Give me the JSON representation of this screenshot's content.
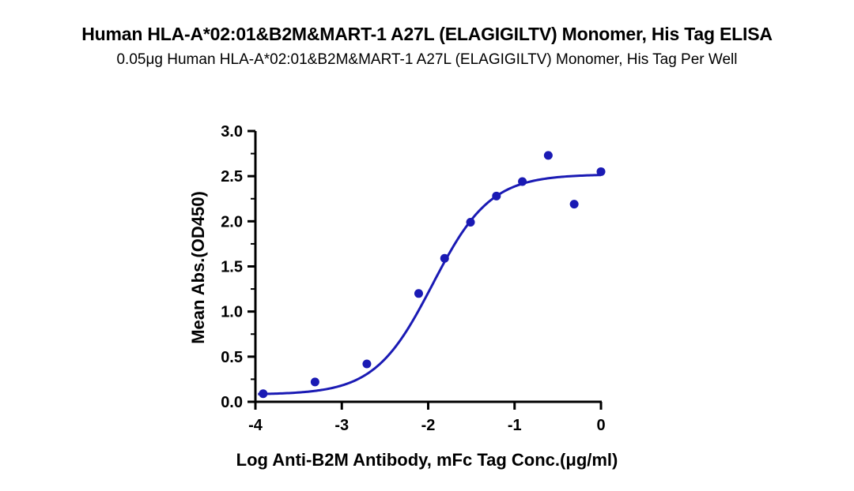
{
  "chart_data": {
    "type": "scatter",
    "title": "Human HLA-A*02:01&B2M&MART-1 A27L (ELAGIGILTV) Monomer, His Tag ELISA",
    "subtitle": "0.05μg  Human HLA-A*02:01&B2M&MART-1 A27L (ELAGIGILTV) Monomer, His Tag Per Well",
    "xlabel": "Log Anti-B2M Antibody, mFc Tag Conc.(μg/ml)",
    "ylabel": "Mean Abs.(OD450)",
    "xlim": [
      -4,
      0
    ],
    "ylim": [
      0,
      3.0
    ],
    "xticks": [
      "-4",
      "-3",
      "-2",
      "-1",
      "0"
    ],
    "yticks": [
      "0.0",
      "0.5",
      "1.0",
      "1.5",
      "2.0",
      "2.5",
      "3.0"
    ],
    "grid": false,
    "series": [
      {
        "points": [
          {
            "x": -3.91,
            "y": 0.09
          },
          {
            "x": -3.31,
            "y": 0.22
          },
          {
            "x": -2.71,
            "y": 0.42
          },
          {
            "x": -2.11,
            "y": 1.2
          },
          {
            "x": -1.81,
            "y": 1.59
          },
          {
            "x": -1.51,
            "y": 1.99
          },
          {
            "x": -1.21,
            "y": 2.28
          },
          {
            "x": -0.91,
            "y": 2.44
          },
          {
            "x": -0.61,
            "y": 2.73
          },
          {
            "x": -0.31,
            "y": 2.19
          },
          {
            "x": 0.0,
            "y": 2.55
          }
        ],
        "fit": {
          "model": "4PL",
          "bottom": 0.08,
          "top": 2.52,
          "logEC50": -1.95,
          "hill": 1.3
        }
      }
    ],
    "color": "#1a1ab4"
  }
}
